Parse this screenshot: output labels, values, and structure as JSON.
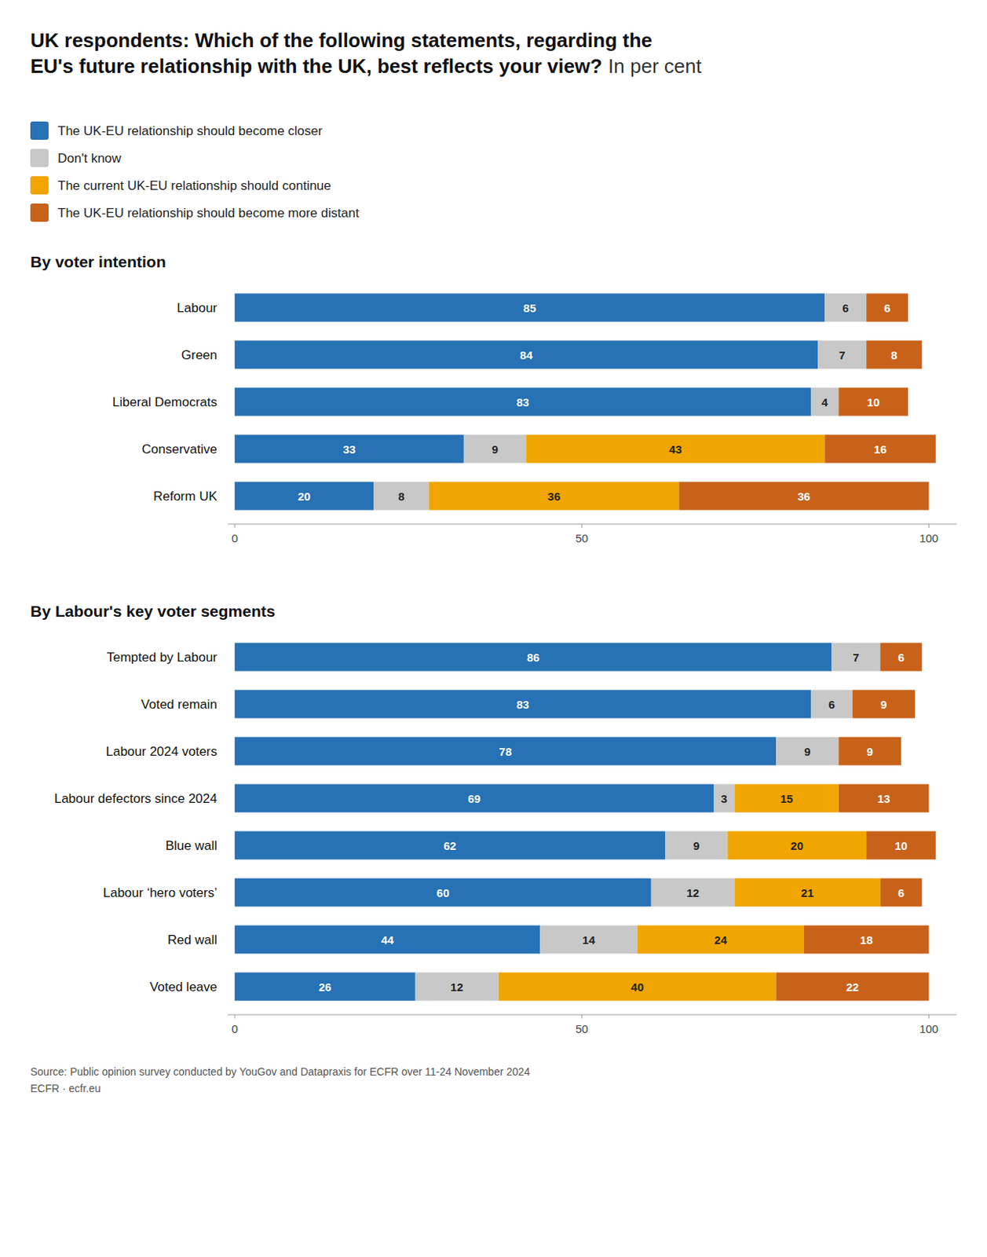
{
  "chart_data": [
    {
      "type": "bar",
      "orientation": "horizontal",
      "stacked": true,
      "data_labels": true,
      "tick_labels": "x",
      "legend": "upper left",
      "grid": false,
      "title": "UK respondents: Which of the following statements, regarding the\nEU's future relationship with the UK, best reflects your view?",
      "annotations": [
        "In per cent"
      ],
      "subtitle": "By voter intention",
      "categories": [
        "Labour",
        "Green",
        "Liberal Democrats",
        "Conservative",
        "Reform UK"
      ],
      "series": [
        {
          "name": "The UK-EU relationship should become closer",
          "color": "#2771B5",
          "values": [
            85,
            84,
            83,
            33,
            20
          ]
        },
        {
          "name": "Don't know",
          "color": "#C8C8C8",
          "values": [
            6,
            7,
            4,
            9,
            8
          ]
        },
        {
          "name": "The current UK-EU relationship should continue",
          "color": "#F0A500",
          "values": [
            0,
            0,
            0,
            43,
            36
          ]
        },
        {
          "name": "The UK-EU relationship should become more distant",
          "color": "#C8621A",
          "values": [
            6,
            8,
            10,
            16,
            36
          ]
        }
      ],
      "xlim": [
        -1,
        104
      ],
      "xticks": [
        0,
        50,
        100
      ]
    },
    {
      "type": "bar",
      "orientation": "horizontal",
      "stacked": true,
      "data_labels": true,
      "tick_labels": "x",
      "grid": false,
      "subtitle": "By Labour's key voter segments",
      "annotations": [
        "Source: Public opinion survey conducted by YouGov and Datapraxis for ECFR over 11-24 November 2024\nECFR · ecfr.eu"
      ],
      "categories": [
        "Tempted by Labour",
        "Voted remain",
        "Labour 2024 voters",
        "Labour defectors since 2024",
        "Blue wall",
        "Labour ‘hero voters’",
        "Red wall",
        "Voted leave"
      ],
      "series": [
        {
          "color": "#2771B5",
          "values": [
            86,
            83,
            78,
            69,
            62,
            60,
            44,
            26
          ]
        },
        {
          "color": "#C8C8C8",
          "values": [
            7,
            6,
            9,
            3,
            9,
            12,
            14,
            12
          ]
        },
        {
          "color": "#F0A500",
          "values": [
            0,
            0,
            0,
            15,
            20,
            21,
            24,
            40
          ]
        },
        {
          "color": "#C8621A",
          "values": [
            6,
            9,
            9,
            13,
            10,
            6,
            18,
            22
          ]
        }
      ],
      "xlim": [
        -1,
        104
      ],
      "xticks": [
        0,
        50,
        100
      ]
    }
  ]
}
